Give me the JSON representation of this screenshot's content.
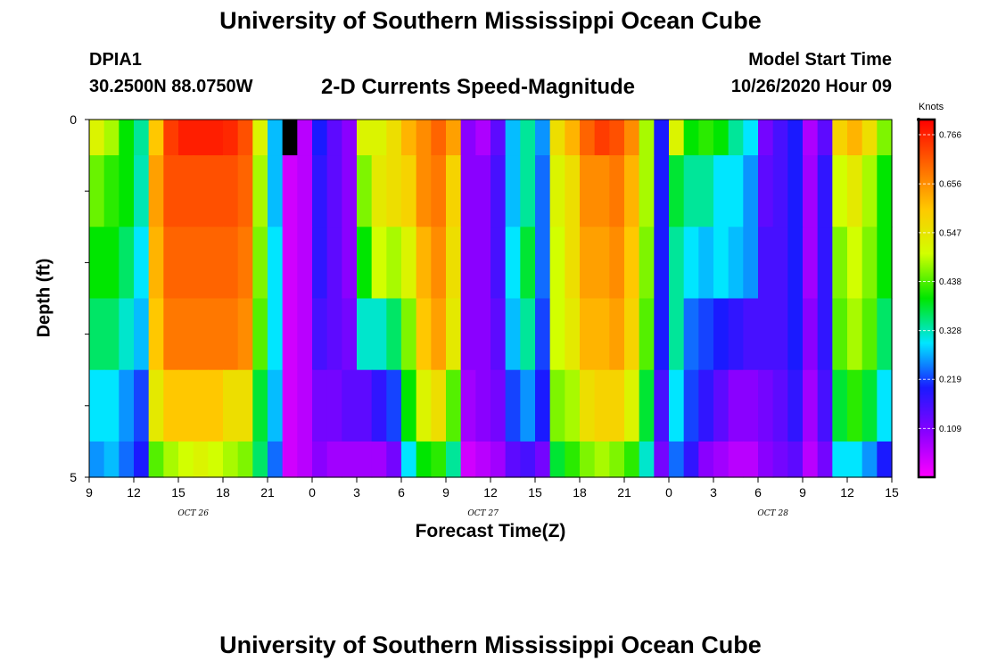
{
  "header": {
    "title": "University of Southern Mississippi Ocean Cube",
    "station_id": "DPIA1",
    "station_coords": "30.2500N 88.0750W",
    "plot_title": "2-D Currents Speed-Magnitude",
    "model_start_label": "Model Start Time",
    "model_start_value": "10/26/2020 Hour 09"
  },
  "footer": {
    "title": "University of Southern Mississippi Ocean Cube"
  },
  "colorbar": {
    "unit": "Knots",
    "ticks": [
      "0.766",
      "0.656",
      "0.547",
      "0.438",
      "0.328",
      "0.219",
      "0.109"
    ],
    "colors": [
      "#ff00ff",
      "#8a00ff",
      "#1a1aff",
      "#00e6ff",
      "#00e600",
      "#d2ff00",
      "#ffc800",
      "#ff6400",
      "#ff0000"
    ]
  },
  "chart_data": {
    "type": "heatmap",
    "title": "2-D Currents Speed-Magnitude",
    "xlabel": "Forecast Time(Z)",
    "ylabel": "Depth (ft)",
    "units": "Knots",
    "xlim": [
      0,
      54
    ],
    "ylim": [
      5,
      0
    ],
    "x_tick_labels": [
      "9",
      "12",
      "15",
      "18",
      "21",
      "0",
      "3",
      "6",
      "9",
      "12",
      "15",
      "18",
      "21",
      "0",
      "3",
      "6",
      "9",
      "12",
      "15"
    ],
    "y_tick_labels": [
      "0",
      "5"
    ],
    "date_labels": [
      {
        "label": "OCT 26",
        "hour_index": 7
      },
      {
        "label": "OCT 27",
        "hour_index": 26.5
      },
      {
        "label": "OCT 28",
        "hour_index": 46
      }
    ],
    "value_range": [
      0.0,
      0.8
    ],
    "missing_value": "black",
    "depth_levels": [
      "0-0.5",
      "0.5-1.5",
      "1.5-2.5",
      "2.5-3.5",
      "3.5-4.5",
      "4.5-5"
    ],
    "hours": [
      "09",
      "10",
      "11",
      "12",
      "13",
      "14",
      "15",
      "16",
      "17",
      "18",
      "19",
      "20",
      "21",
      "22",
      "23",
      "00",
      "01",
      "02",
      "03",
      "04",
      "05",
      "06",
      "07",
      "08",
      "09",
      "10",
      "11",
      "12",
      "13",
      "14",
      "15",
      "16",
      "17",
      "18",
      "19",
      "20",
      "21",
      "22",
      "23",
      "00",
      "01",
      "02",
      "03",
      "04",
      "05",
      "06",
      "07",
      "08",
      "09",
      "10",
      "11",
      "12",
      "13",
      "14"
    ],
    "values": [
      [
        0.52,
        0.48,
        0.4,
        0.34,
        0.6,
        0.74,
        0.77,
        0.77,
        0.77,
        0.76,
        0.72,
        0.52,
        0.28,
        null,
        0.06,
        0.2,
        0.14,
        0.1,
        0.52,
        0.52,
        0.56,
        0.62,
        0.66,
        0.7,
        0.64,
        0.1,
        0.07,
        0.14,
        0.28,
        0.34,
        0.26,
        0.56,
        0.62,
        0.7,
        0.74,
        0.72,
        0.66,
        0.48,
        0.2,
        0.52,
        0.4,
        0.42,
        0.4,
        0.34,
        0.3,
        0.12,
        0.16,
        0.2,
        0.07,
        0.14,
        0.58,
        0.62,
        0.56,
        0.46
      ],
      [
        0.45,
        0.42,
        0.4,
        0.33,
        0.64,
        0.72,
        0.72,
        0.72,
        0.72,
        0.72,
        0.7,
        0.48,
        0.28,
        0.04,
        0.06,
        0.18,
        0.14,
        0.1,
        0.46,
        0.54,
        0.56,
        0.58,
        0.66,
        0.68,
        0.58,
        0.1,
        0.1,
        0.16,
        0.28,
        0.34,
        0.24,
        0.52,
        0.56,
        0.66,
        0.66,
        0.68,
        0.62,
        0.48,
        0.2,
        0.38,
        0.34,
        0.34,
        0.3,
        0.3,
        0.26,
        0.14,
        0.16,
        0.2,
        0.08,
        0.18,
        0.5,
        0.54,
        0.48,
        0.4
      ],
      [
        0.4,
        0.4,
        0.36,
        0.3,
        0.62,
        0.7,
        0.7,
        0.7,
        0.7,
        0.7,
        0.68,
        0.46,
        0.3,
        0.04,
        0.06,
        0.18,
        0.14,
        0.1,
        0.4,
        0.5,
        0.48,
        0.52,
        0.62,
        0.66,
        0.56,
        0.1,
        0.1,
        0.16,
        0.3,
        0.38,
        0.24,
        0.5,
        0.56,
        0.64,
        0.64,
        0.66,
        0.6,
        0.46,
        0.2,
        0.34,
        0.3,
        0.28,
        0.3,
        0.28,
        0.26,
        0.16,
        0.16,
        0.2,
        0.08,
        0.18,
        0.46,
        0.5,
        0.46,
        0.4
      ],
      [
        0.36,
        0.36,
        0.32,
        0.28,
        0.6,
        0.68,
        0.68,
        0.68,
        0.68,
        0.68,
        0.66,
        0.44,
        0.3,
        0.04,
        0.06,
        0.16,
        0.14,
        0.12,
        0.32,
        0.32,
        0.36,
        0.46,
        0.6,
        0.64,
        0.54,
        0.1,
        0.1,
        0.14,
        0.28,
        0.34,
        0.22,
        0.5,
        0.54,
        0.62,
        0.62,
        0.64,
        0.58,
        0.44,
        0.2,
        0.34,
        0.24,
        0.22,
        0.2,
        0.18,
        0.16,
        0.16,
        0.16,
        0.2,
        0.1,
        0.18,
        0.44,
        0.48,
        0.44,
        0.36
      ],
      [
        0.3,
        0.3,
        0.26,
        0.22,
        0.54,
        0.6,
        0.6,
        0.6,
        0.6,
        0.56,
        0.56,
        0.38,
        0.28,
        0.04,
        0.06,
        0.12,
        0.12,
        0.14,
        0.14,
        0.18,
        0.22,
        0.4,
        0.52,
        0.56,
        0.44,
        0.08,
        0.1,
        0.12,
        0.22,
        0.26,
        0.2,
        0.46,
        0.48,
        0.56,
        0.58,
        0.58,
        0.52,
        0.38,
        0.16,
        0.3,
        0.22,
        0.18,
        0.14,
        0.1,
        0.1,
        0.12,
        0.14,
        0.18,
        0.08,
        0.16,
        0.38,
        0.42,
        0.38,
        0.3
      ],
      [
        0.26,
        0.28,
        0.24,
        0.2,
        0.44,
        0.48,
        0.5,
        0.52,
        0.5,
        0.48,
        0.46,
        0.36,
        0.24,
        0.04,
        0.06,
        0.1,
        0.08,
        0.08,
        0.08,
        0.08,
        0.12,
        0.3,
        0.4,
        0.42,
        0.34,
        0.04,
        0.06,
        0.08,
        0.14,
        0.16,
        0.12,
        0.38,
        0.42,
        0.46,
        0.48,
        0.46,
        0.42,
        0.32,
        0.12,
        0.24,
        0.18,
        0.1,
        0.08,
        0.06,
        0.06,
        0.1,
        0.12,
        0.14,
        0.06,
        0.12,
        0.3,
        0.3,
        0.26,
        0.2
      ]
    ]
  }
}
